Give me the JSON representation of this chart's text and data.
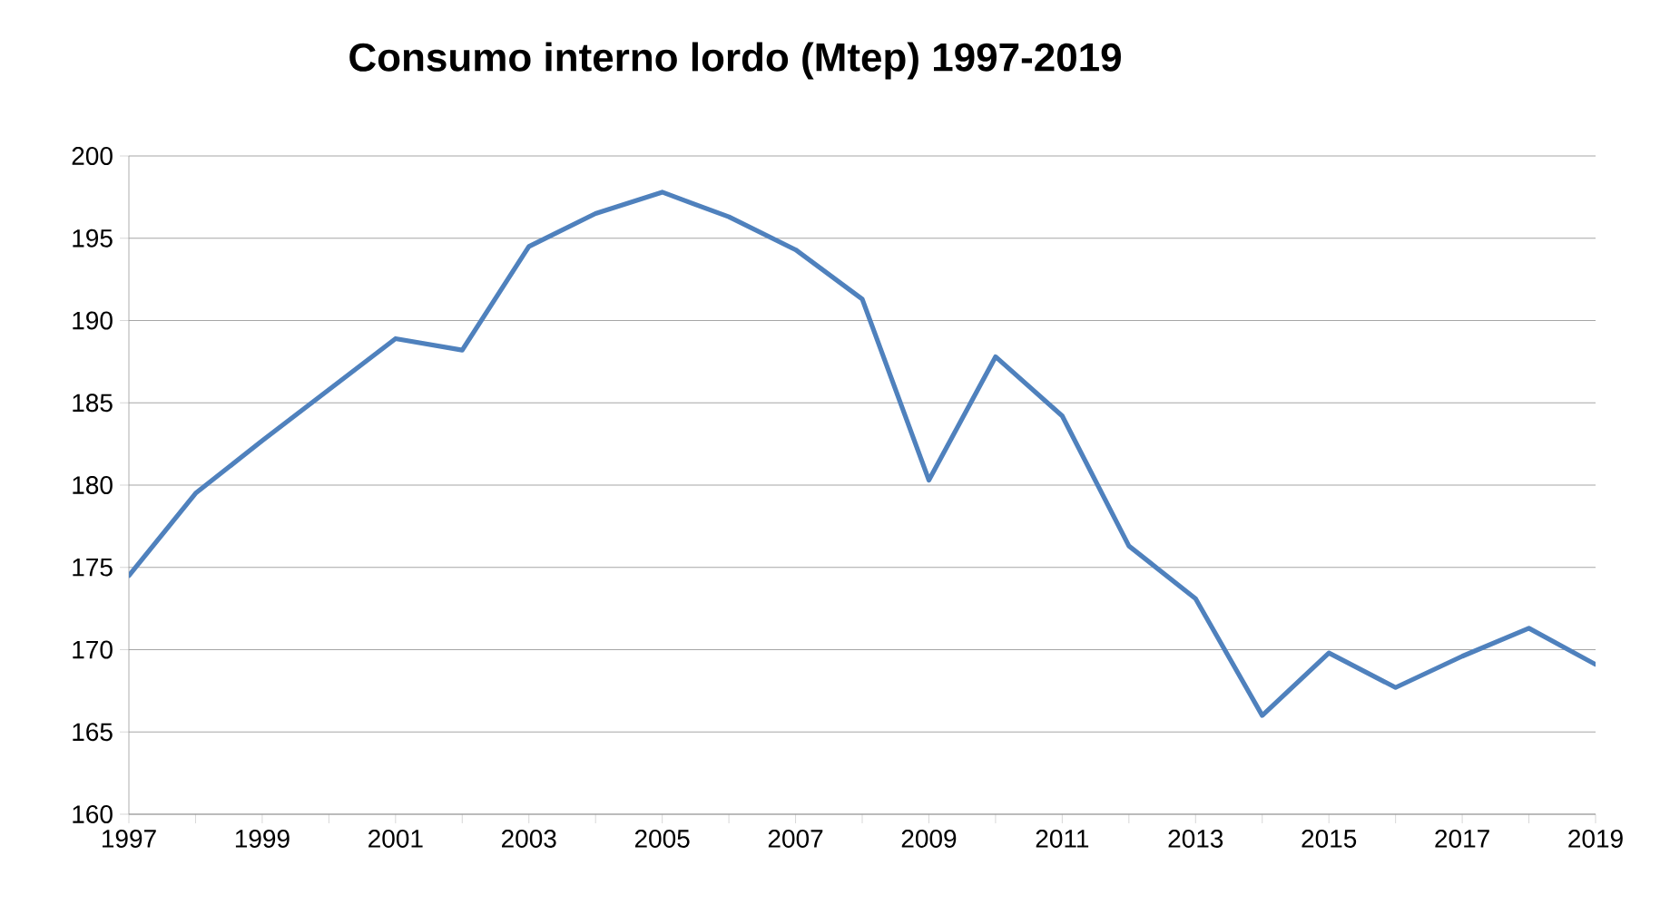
{
  "chart_data": {
    "type": "line",
    "title": "Consumo interno lordo (Mtep) 1997-2019",
    "x": [
      1997,
      1998,
      1999,
      2000,
      2001,
      2002,
      2003,
      2004,
      2005,
      2006,
      2007,
      2008,
      2009,
      2010,
      2011,
      2012,
      2013,
      2014,
      2015,
      2016,
      2017,
      2018,
      2019
    ],
    "values": [
      174.5,
      179.5,
      182.7,
      185.8,
      188.9,
      188.2,
      194.5,
      196.5,
      197.8,
      196.3,
      194.3,
      191.3,
      180.3,
      187.8,
      184.2,
      176.3,
      173.1,
      166.0,
      169.8,
      167.7,
      169.6,
      171.3,
      169.1
    ],
    "color": "#4f81bd",
    "line_style": "solid",
    "grid": "y",
    "xlim": [
      1997,
      2019
    ],
    "xticks": [
      1997,
      {
        "value": 1998,
        "label": null
      },
      1999,
      {
        "value": 2000,
        "label": null
      },
      2001,
      {
        "value": 2002,
        "label": null
      },
      2003,
      {
        "value": 2004,
        "label": null
      },
      2005,
      {
        "value": 2006,
        "label": null
      },
      2007,
      {
        "value": 2008,
        "label": null
      },
      2009,
      {
        "value": 2010,
        "label": null
      },
      2011,
      {
        "value": 2012,
        "label": null
      },
      2013,
      {
        "value": 2014,
        "label": null
      },
      2015,
      {
        "value": 2016,
        "label": null
      },
      2017,
      {
        "value": 2018,
        "label": null
      },
      2019
    ],
    "ylim": [
      160,
      200
    ],
    "yticks": [
      160,
      165,
      170,
      175,
      180,
      185,
      190,
      195,
      200
    ]
  }
}
